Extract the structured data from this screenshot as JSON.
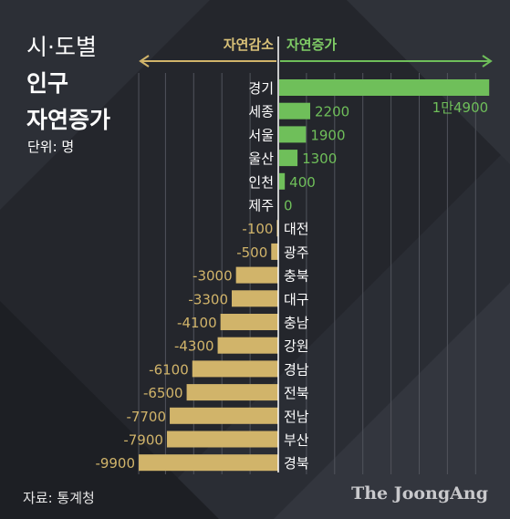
{
  "title": {
    "line1": "시·도별",
    "line2": "인구",
    "line3": "자연증가"
  },
  "unit_label": "단위: 명",
  "direction": {
    "decrease": "자연감소",
    "increase": "자연증가"
  },
  "source": "자료: 통계청",
  "brand": "The JoongAng",
  "colors": {
    "increase": "#6fbf5a",
    "decrease": "#d1b46a",
    "background": "#24262c"
  },
  "chart_data": {
    "type": "bar",
    "orientation": "horizontal",
    "categories": [
      "경기",
      "세종",
      "서울",
      "울산",
      "인천",
      "제주",
      "대전",
      "광주",
      "충북",
      "대구",
      "충남",
      "강원",
      "경남",
      "전북",
      "전남",
      "부산",
      "경북"
    ],
    "values": [
      14900,
      2200,
      1900,
      1300,
      400,
      0,
      -100,
      -500,
      -3000,
      -3300,
      -4100,
      -4300,
      -6100,
      -6500,
      -7700,
      -7900,
      -9900
    ],
    "value_labels": [
      "1만4900",
      "2200",
      "1900",
      "1300",
      "400",
      "0",
      "-100",
      "-500",
      "-3000",
      "-3300",
      "-4100",
      "-4300",
      "-6100",
      "-6500",
      "-7700",
      "-7900",
      "-9900"
    ],
    "grid": true,
    "legend": "none"
  }
}
